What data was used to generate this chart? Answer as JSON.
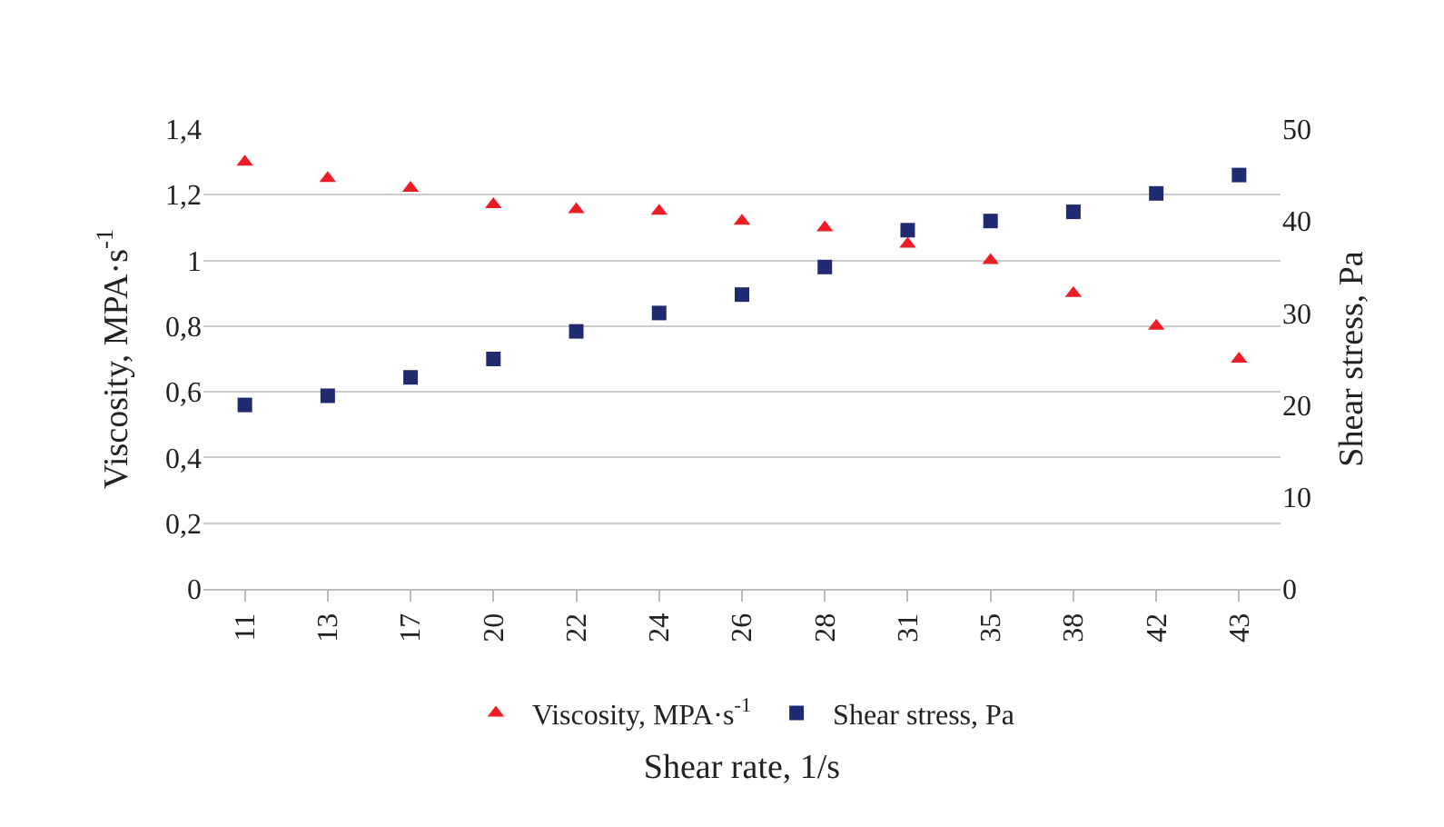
{
  "chart_data": {
    "type": "scatter",
    "xlabel": "Shear rate, 1/s",
    "ylabel": "Viscosity, MPA·s$^{-1}$",
    "y2label": "Shear stress, Pa",
    "categories": [
      "11",
      "13",
      "17",
      "20",
      "22",
      "24",
      "26",
      "28",
      "31",
      "35",
      "38",
      "42",
      "43"
    ],
    "series": [
      {
        "name": "Viscosity, MPA·s$^{-1}$",
        "color": "#ee1c25",
        "marker": "triangle",
        "values": [
          1.3,
          1.25,
          1.22,
          1.17,
          1.155,
          1.15,
          1.12,
          1.1,
          1.05,
          1.0,
          0.9,
          0.8,
          0.7
        ]
      },
      {
        "name": "Shear stress, Pa",
        "color": "#1f2a70",
        "marker": "square",
        "axis": "y2",
        "values": [
          20,
          21,
          23,
          25,
          28,
          30,
          32,
          35,
          39,
          40,
          41,
          43,
          45
        ]
      }
    ],
    "ylim": [
      0,
      1.4
    ],
    "yticks": [
      0,
      {
        "value": 0.2,
        "label": "0,2"
      },
      {
        "value": 0.4,
        "label": "0,4"
      },
      {
        "value": 0.6,
        "label": "0,6"
      },
      {
        "value": 0.8,
        "label": "0,8"
      },
      1,
      {
        "value": 1.2,
        "label": "1,2"
      },
      {
        "value": 1.4,
        "label": "1,4"
      }
    ],
    "y2lim": [
      0,
      50
    ],
    "y2ticks": [
      0,
      10,
      20,
      30,
      40,
      50
    ],
    "grid": "y",
    "legend": "bottom"
  }
}
